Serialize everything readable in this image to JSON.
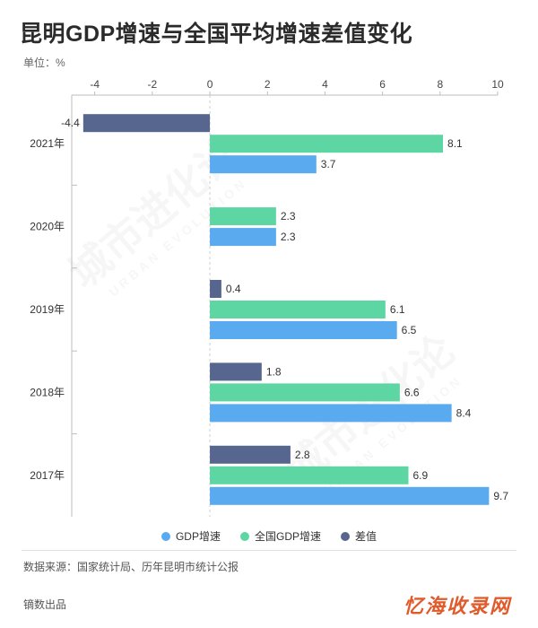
{
  "title": "昆明GDP增速与全国平均增速差值变化",
  "unit_label": "单位：%",
  "source": "数据来源：国家统计局、历年昆明市统计公报",
  "producer": "镝数出品",
  "brand": "忆海收录网",
  "watermark": {
    "main": "城市进化论",
    "sub": "URBAN EVOLUTION"
  },
  "colors": {
    "gdp": "#5aaaf0",
    "national": "#5dd6a4",
    "diff": "#56668f"
  },
  "chart_data": {
    "type": "bar",
    "orientation": "horizontal",
    "categories": [
      "2021年",
      "2020年",
      "2019年",
      "2018年",
      "2017年"
    ],
    "series": [
      {
        "name": "差值",
        "values": [
          -4.4,
          null,
          0.4,
          1.8,
          2.8
        ]
      },
      {
        "name": "全国GDP增速",
        "values": [
          8.1,
          2.3,
          6.1,
          6.6,
          6.9
        ]
      },
      {
        "name": "GDP增速",
        "values": [
          3.7,
          2.3,
          6.5,
          8.4,
          9.7
        ]
      }
    ],
    "xlim": [
      -4.8,
      10
    ],
    "xticks": [
      -4,
      -2,
      0,
      2,
      4,
      6,
      8,
      10
    ],
    "xlabel": "",
    "ylabel": "",
    "grid": true,
    "legend_position": "bottom",
    "legend": [
      "GDP增速",
      "全国GDP增速",
      "差值"
    ]
  }
}
